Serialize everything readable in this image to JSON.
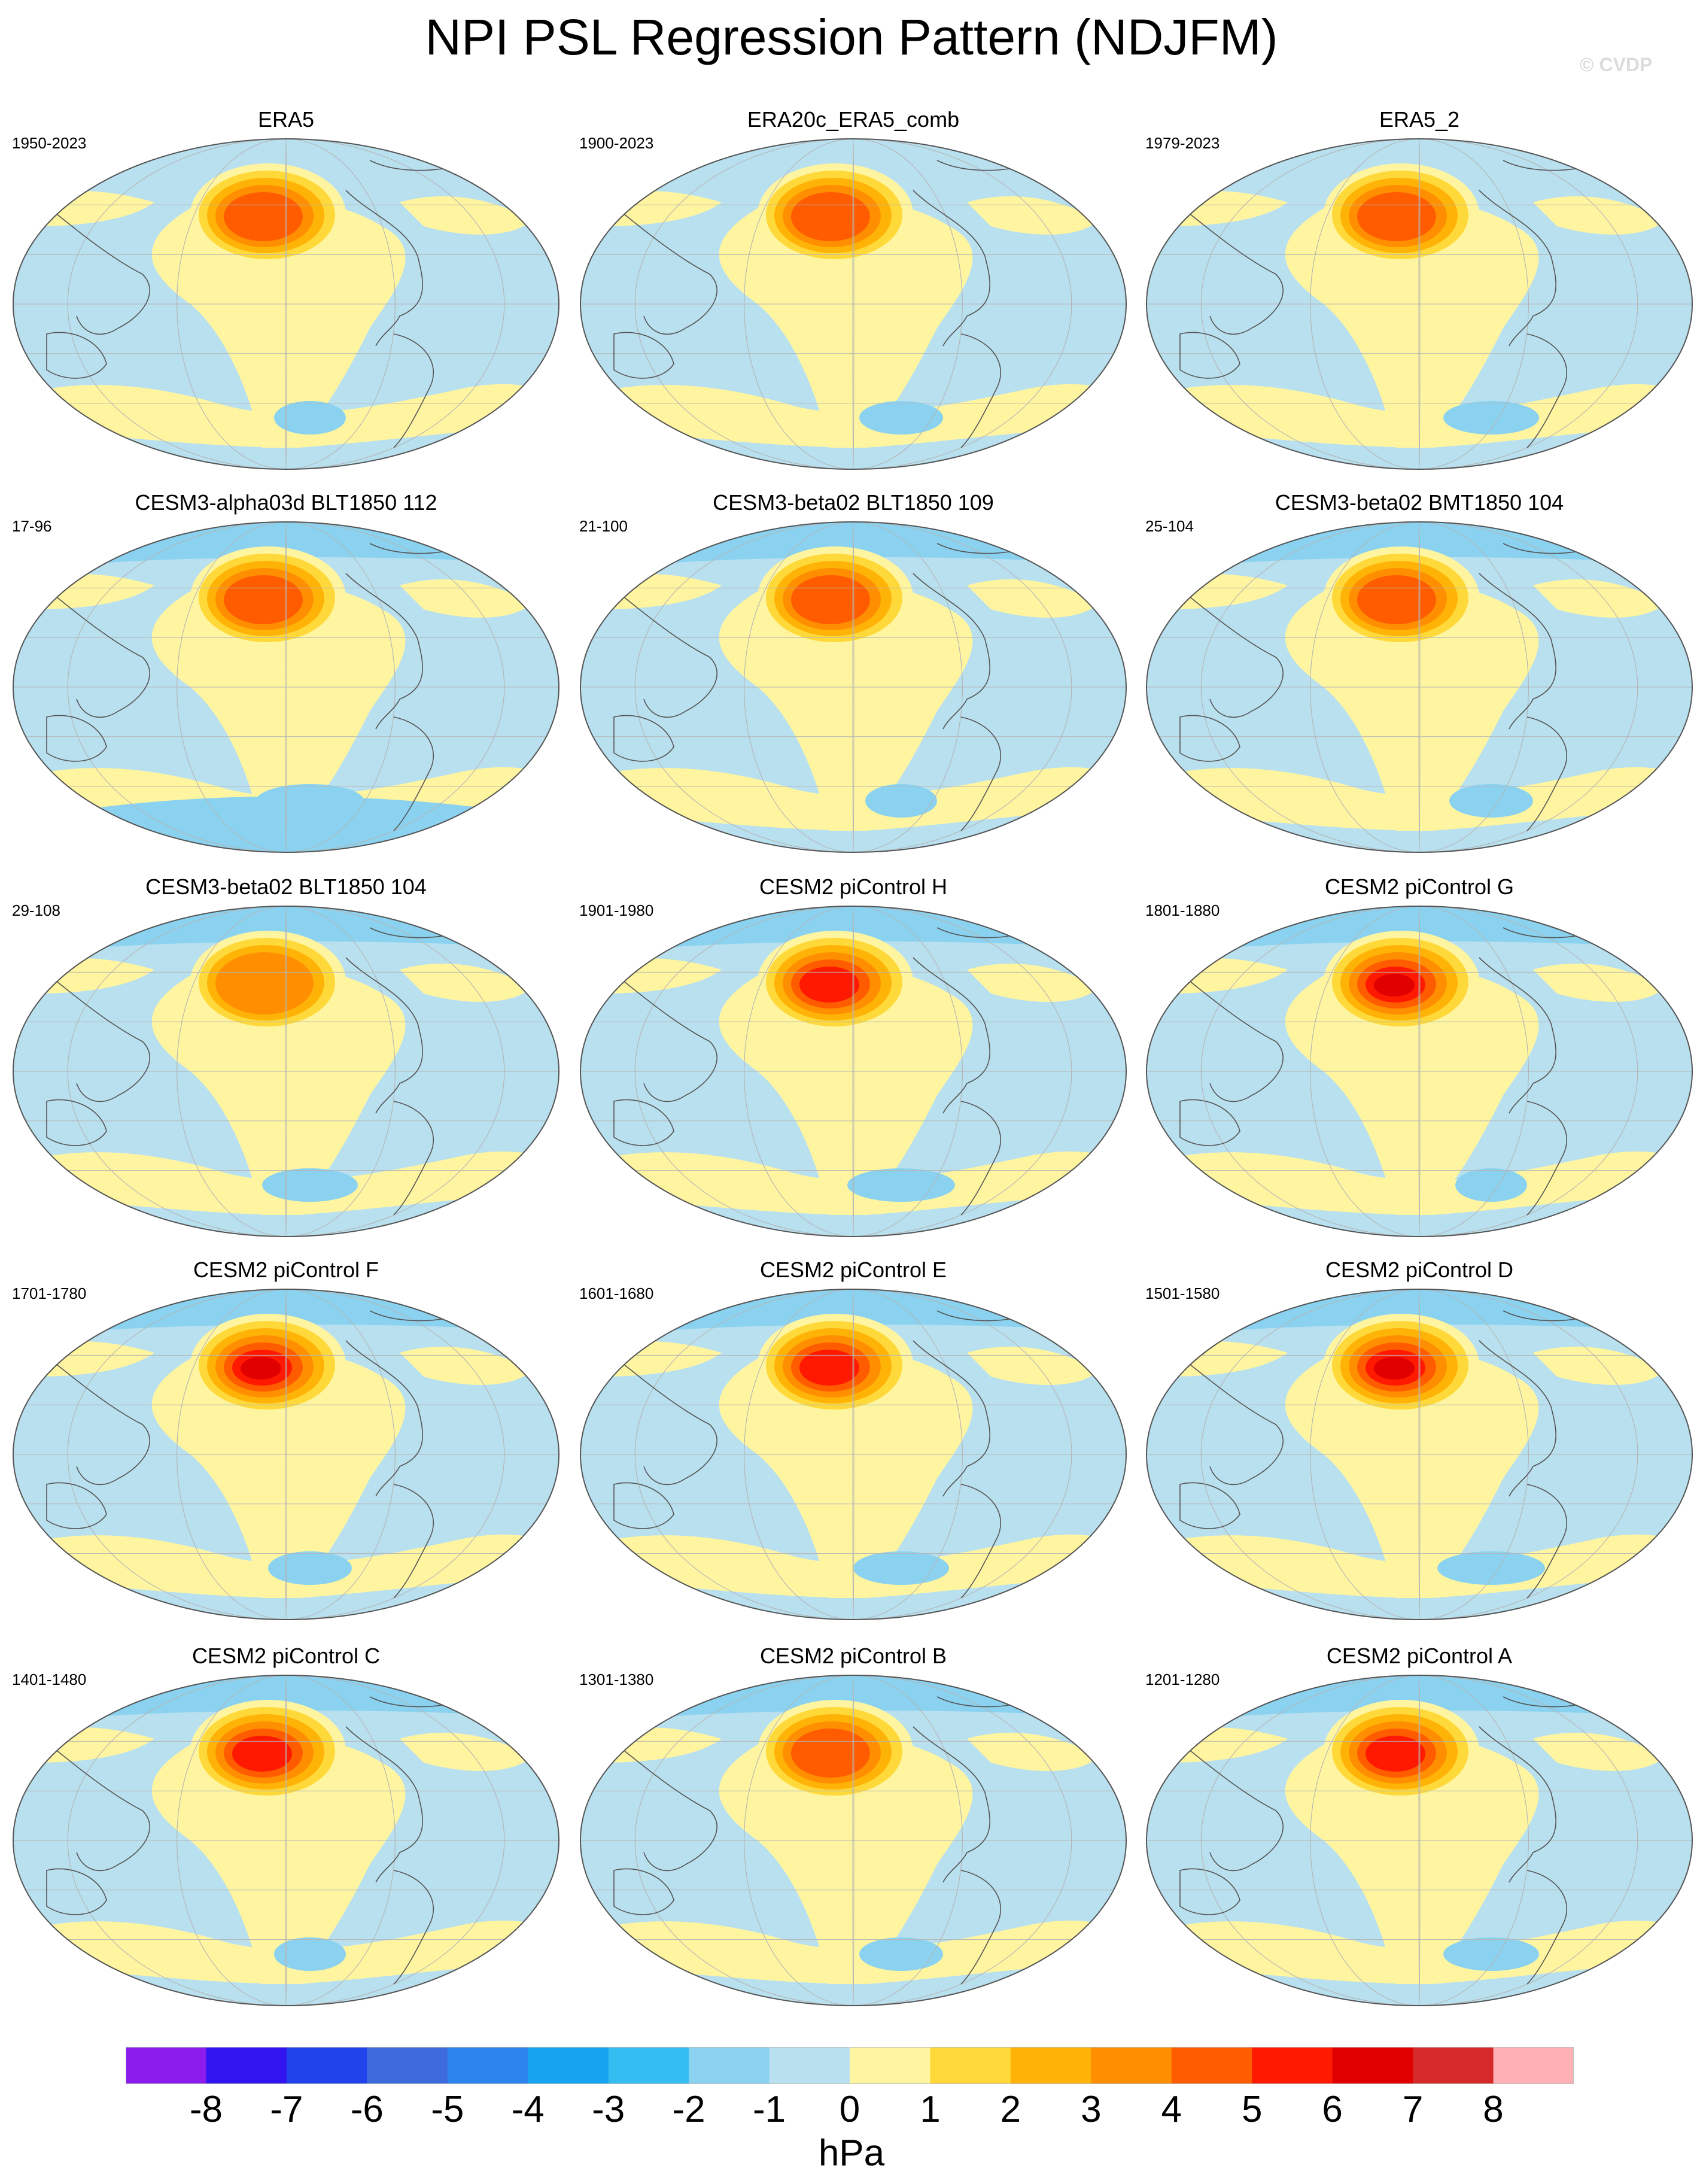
{
  "title": "NPI PSL Regression Pattern (NDJFM)",
  "watermark": "© CVDP",
  "colorbar": {
    "units": "hPa",
    "tick_labels": [
      "-8",
      "-7",
      "-6",
      "-5",
      "-4",
      "-3",
      "-2",
      "-1",
      "0",
      "1",
      "2",
      "3",
      "4",
      "5",
      "6",
      "7",
      "8"
    ],
    "colors": [
      "#8b1ceb",
      "#3214f0",
      "#2143eb",
      "#3d6bde",
      "#2e84ef",
      "#16a3f0",
      "#33bdf0",
      "#8ad2f0",
      "#b8e0ef",
      "#fff5a0",
      "#ffd939",
      "#ffb307",
      "#ff8f00",
      "#ff5c00",
      "#ff1900",
      "#e00000",
      "#d62a2a",
      "#ffb0b4"
    ]
  },
  "palette": {
    "positive": [
      "#fff5a0",
      "#ffd939",
      "#ffb307",
      "#ff8f00",
      "#ff5c00",
      "#ff1900",
      "#e00000"
    ],
    "negative": [
      "#b8e0ef",
      "#8ad2f0",
      "#33bdf0",
      "#16a3f0",
      "#2e84ef"
    ]
  },
  "panels": [
    {
      "title": "ERA5",
      "period": "1950-2023"
    },
    {
      "title": "ERA20c_ERA5_comb",
      "period": "1900-2023"
    },
    {
      "title": "ERA5_2",
      "period": "1979-2023"
    },
    {
      "title": "CESM3-alpha03d BLT1850 112",
      "period": "17-96"
    },
    {
      "title": "CESM3-beta02 BLT1850 109",
      "period": "21-100"
    },
    {
      "title": "CESM3-beta02 BMT1850 104",
      "period": "25-104"
    },
    {
      "title": "CESM3-beta02 BLT1850 104",
      "period": "29-108"
    },
    {
      "title": "CESM2 piControl H",
      "period": "1901-1980"
    },
    {
      "title": "CESM2 piControl G",
      "period": "1801-1880"
    },
    {
      "title": "CESM2 piControl F",
      "period": "1701-1780"
    },
    {
      "title": "CESM2 piControl E",
      "period": "1601-1680"
    },
    {
      "title": "CESM2 piControl D",
      "period": "1501-1580"
    },
    {
      "title": "CESM2 piControl C",
      "period": "1401-1480"
    },
    {
      "title": "CESM2 piControl B",
      "period": "1301-1380"
    },
    {
      "title": "CESM2 piControl A",
      "period": "1201-1280"
    }
  ]
}
